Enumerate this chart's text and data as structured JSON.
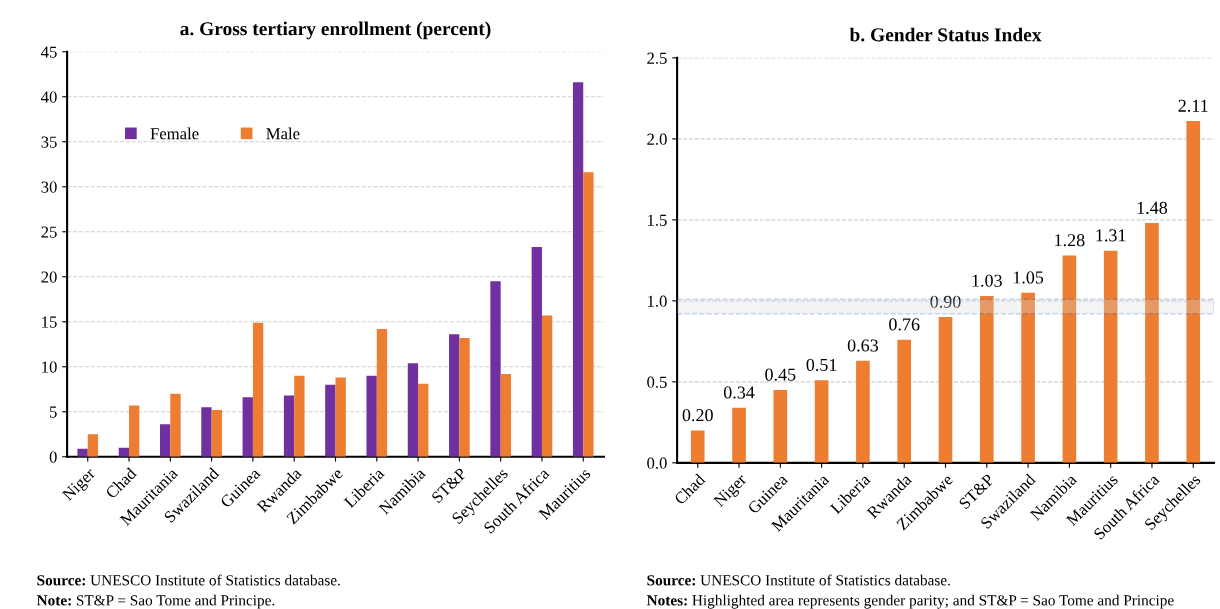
{
  "chart_data": [
    {
      "type": "bar",
      "title": "a. Gross tertiary enrollment (percent)",
      "categories": [
        "Niger",
        "Chad",
        "Mauritania",
        "Swaziland",
        "Guinea",
        "Rwanda",
        "Zimbabwe",
        "Liberia",
        "Namibia",
        "ST&P",
        "Seychelles",
        "South Africa",
        "Mauritius"
      ],
      "series": [
        {
          "name": "Female",
          "color": "#7030a0",
          "values": [
            0.9,
            1.0,
            3.6,
            5.5,
            6.6,
            6.8,
            8.0,
            9.0,
            10.4,
            13.6,
            19.5,
            23.3,
            41.6
          ]
        },
        {
          "name": "Male",
          "color": "#ed7d31",
          "values": [
            2.5,
            5.7,
            7.0,
            5.2,
            14.9,
            9.0,
            8.8,
            14.2,
            8.1,
            13.2,
            9.2,
            15.7,
            31.6
          ]
        }
      ],
      "ylim": [
        0,
        45
      ],
      "yticks": [
        0,
        5,
        10,
        15,
        20,
        25,
        30,
        35,
        40,
        45
      ],
      "grid": "y",
      "legend": "top left",
      "annotations": [
        "Source: UNESCO Institute of Statistics database.",
        "Note: ST&P = Sao Tome and Principe."
      ]
    },
    {
      "type": "bar",
      "title": "b. Gender Status Index",
      "categories": [
        "Chad",
        "Niger",
        "Guinea",
        "Mauritania",
        "Liberia",
        "Rwanda",
        "Zimbabwe",
        "ST&P",
        "Swaziland",
        "Namibia",
        "Mauritius",
        "South Africa",
        "Seychelles"
      ],
      "values": [
        0.2,
        0.34,
        0.45,
        0.51,
        0.63,
        0.76,
        0.9,
        1.03,
        1.05,
        1.28,
        1.31,
        1.48,
        2.11
      ],
      "color": "#ed7d31",
      "value_labels": [
        "0.20",
        "0.34",
        "0.45",
        "0.51",
        "0.63",
        "0.76",
        "0.90",
        "1.03",
        "1.05",
        "1.28",
        "1.31",
        "1.48",
        "2.11"
      ],
      "ylim": [
        0,
        2.5
      ],
      "yticks": [
        {
          "value": 0,
          "label": "0.0"
        },
        0.5,
        {
          "value": 1,
          "label": "1.0"
        },
        1.5,
        {
          "value": 2,
          "label": "2.0"
        },
        2.5
      ],
      "grid": "y",
      "bands": [
        {
          "axis": "y",
          "from": 0.92,
          "to": 1.01,
          "color": "#d9d9d9"
        }
      ],
      "annotations": [
        "Source: UNESCO Institute of Statistics database.",
        "Notes: Highlighted area represents gender parity; and ST&P = Sao Tome and Principe"
      ]
    }
  ]
}
